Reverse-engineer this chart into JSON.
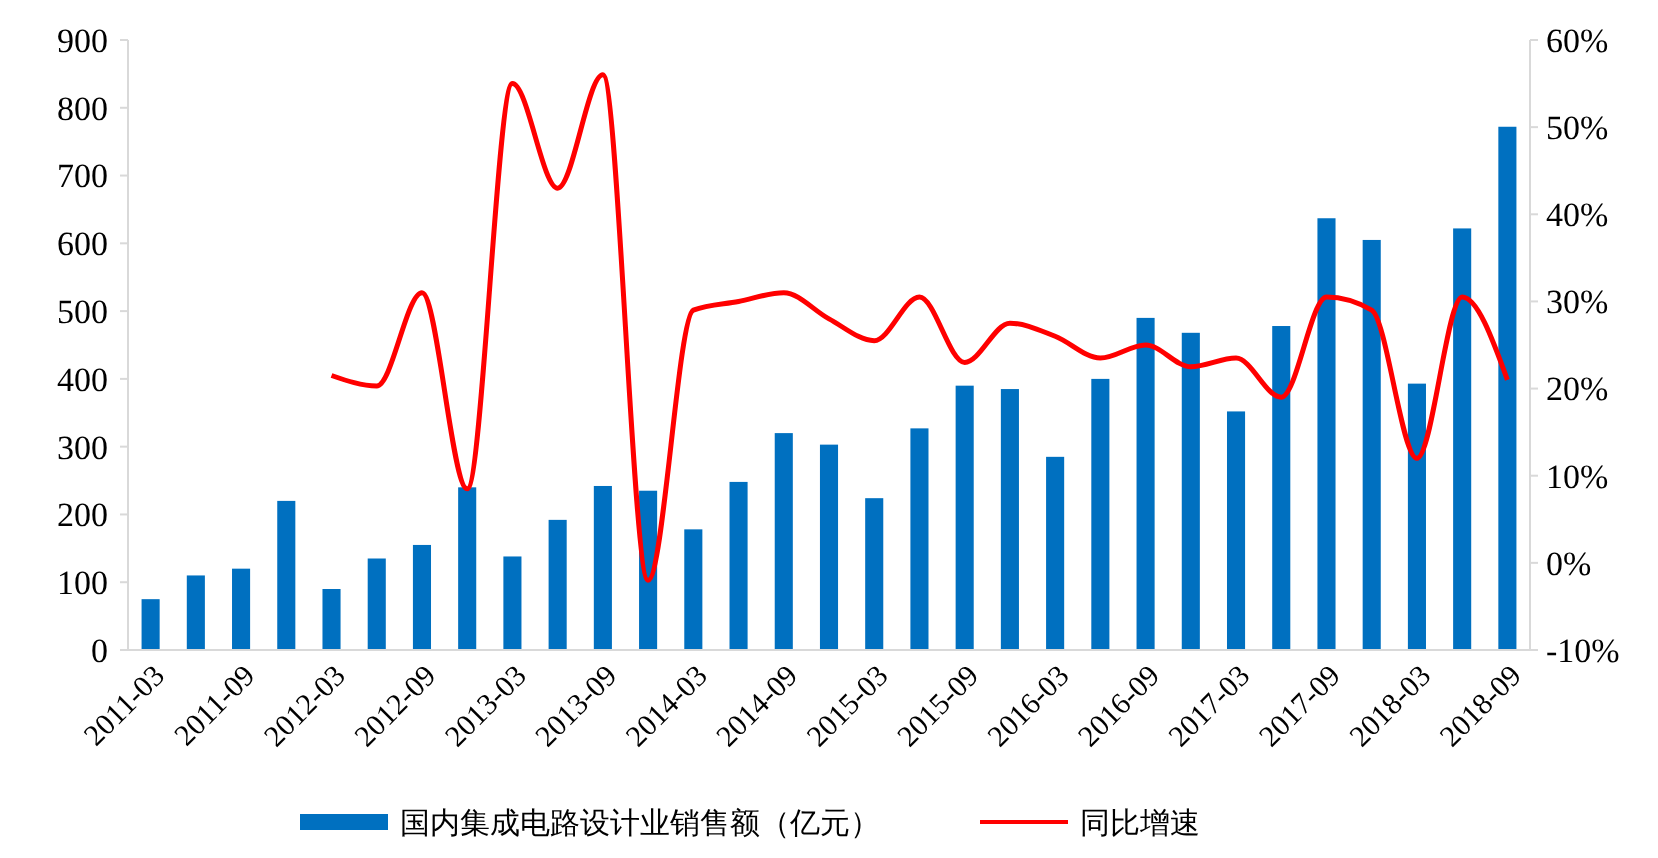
{
  "chart_data": {
    "type": "bar",
    "categories": [
      "2011-03",
      null,
      "2011-09",
      null,
      "2012-03",
      null,
      "2012-09",
      null,
      "2013-03",
      null,
      "2013-09",
      null,
      "2014-03",
      null,
      "2014-09",
      null,
      "2015-03",
      null,
      "2015-09",
      null,
      "2016-03",
      null,
      "2016-09",
      null,
      "2017-03",
      null,
      "2017-09",
      null,
      "2018-03",
      null,
      "2018-09"
    ],
    "series": [
      {
        "name": "国内集成电路设计业销售额（亿元）",
        "color": "#0070c0",
        "values": [
          75,
          110,
          120,
          220,
          90,
          135,
          155,
          240,
          138,
          192,
          242,
          235,
          178,
          248,
          320,
          303,
          224,
          327,
          390,
          385,
          285,
          400,
          490,
          468,
          352,
          478,
          637,
          605,
          393,
          622,
          772
        ]
      },
      {
        "name": "同比增速",
        "type": "line",
        "axis": "y2",
        "color": "#ff0000",
        "values": [
          null,
          null,
          null,
          null,
          21.5,
          20.3,
          31,
          8.5,
          55,
          43,
          56,
          -2,
          29,
          30,
          31,
          28,
          25.5,
          30.5,
          23,
          27.5,
          26,
          23.5,
          25,
          22.5,
          23.5,
          19,
          30.5,
          29,
          12,
          30.5,
          21
        ]
      }
    ],
    "ylim": [
      0,
      900
    ],
    "yticks": [
      0,
      100,
      200,
      300,
      400,
      500,
      600,
      700,
      800,
      900
    ],
    "y2lim": [
      -10,
      60
    ],
    "y2ticks": [
      {
        "value": -10,
        "label": "-10%"
      },
      {
        "value": 0,
        "label": "0%"
      },
      {
        "value": 10,
        "label": "10%"
      },
      {
        "value": 20,
        "label": "20%"
      },
      {
        "value": 30,
        "label": "30%"
      },
      {
        "value": 40,
        "label": "40%"
      },
      {
        "value": 50,
        "label": "50%"
      },
      {
        "value": 60,
        "label": "60%"
      }
    ],
    "legend": "bottom",
    "grid": false
  }
}
